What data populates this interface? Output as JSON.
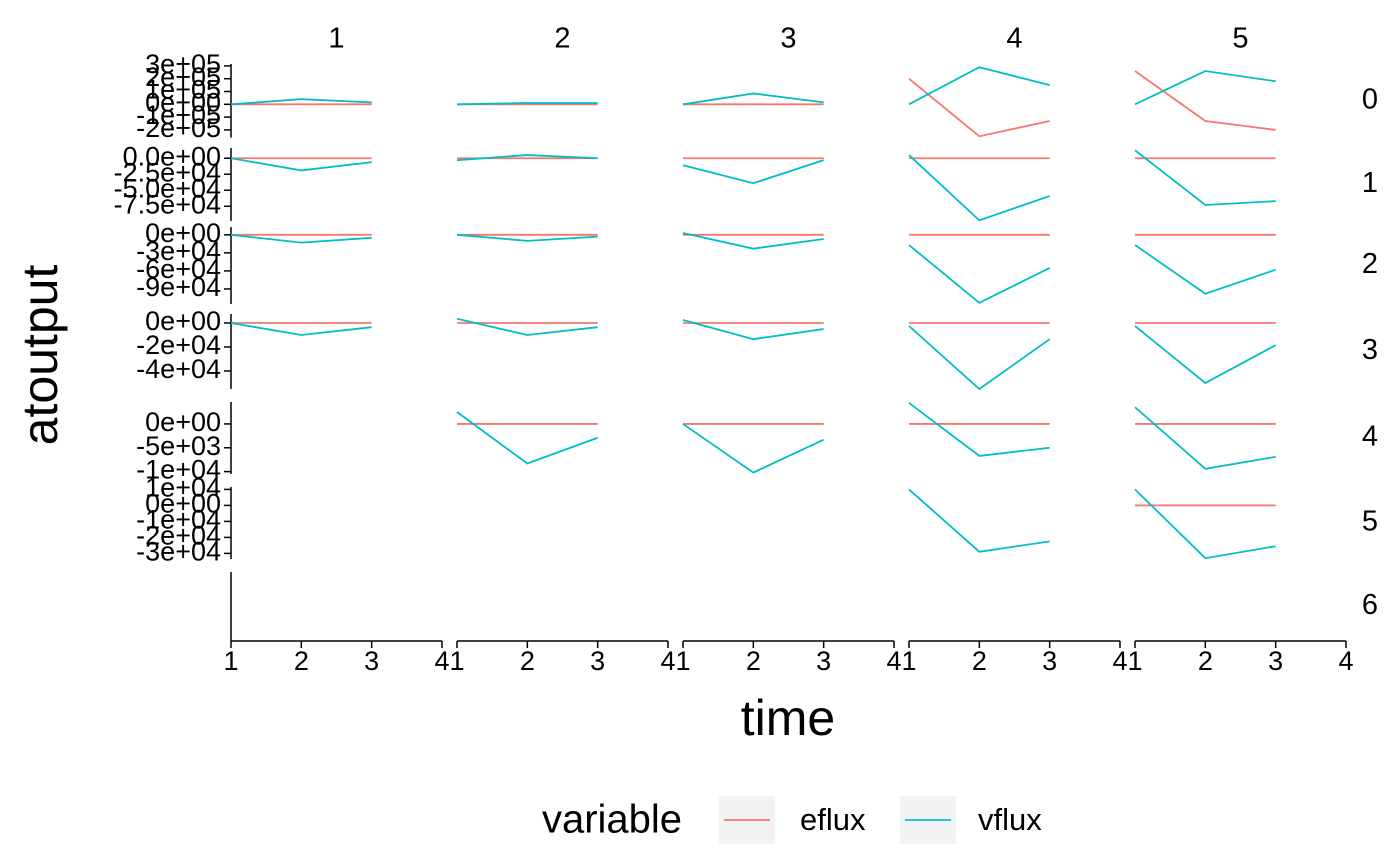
{
  "chart_data": {
    "type": "line",
    "x_label": "time",
    "y_label": "atoutput",
    "legend_title": "variable",
    "series": [
      {
        "name": "eflux",
        "color": "#F8766D"
      },
      {
        "name": "vflux",
        "color": "#00BFC4"
      }
    ],
    "x": [
      1,
      2,
      3
    ],
    "xlim": [
      1,
      4
    ],
    "xticks": [
      1,
      2,
      3,
      4
    ],
    "columns": [
      "1",
      "2",
      "3",
      "4",
      "5"
    ],
    "rows": [
      {
        "label": "0",
        "ylim": [
          -260000,
          315000
        ],
        "yticks": [
          {
            "value": 300000,
            "label": "3e+05"
          },
          {
            "value": 200000,
            "label": "2e+05"
          },
          {
            "value": 100000,
            "label": "1e+05"
          },
          {
            "value": 0,
            "label": "0e+00"
          },
          {
            "value": -100000,
            "label": "-1e+05"
          },
          {
            "value": -200000,
            "label": "-2e+05"
          }
        ],
        "values": [
          [
            [
              0,
              0,
              0
            ],
            [
              0,
              0,
              0
            ],
            [
              0,
              0,
              0
            ],
            [
              200000,
              -250000,
              -130000
            ],
            [
              260000,
              -130000,
              -200000
            ]
          ],
          [
            [
              0,
              40000,
              15000
            ],
            [
              0,
              10000,
              10000
            ],
            [
              0,
              85000,
              15000
            ],
            [
              0,
              290000,
              150000
            ],
            [
              0,
              260000,
              180000
            ]
          ]
        ]
      },
      {
        "label": "1",
        "ylim": [
          -98000,
          16000
        ],
        "yticks": [
          {
            "value": 0,
            "label": "0.0e+00"
          },
          {
            "value": -25000,
            "label": "-2.5e+04"
          },
          {
            "value": -50000,
            "label": "-5.0e+04"
          },
          {
            "value": -75000,
            "label": "-7.5e+04"
          }
        ],
        "values": [
          [
            [
              0,
              0,
              0
            ],
            [
              0,
              0,
              0
            ],
            [
              0,
              0,
              0
            ],
            [
              0,
              0,
              0
            ],
            [
              0,
              0,
              0
            ]
          ],
          [
            [
              0,
              -19000,
              -6000
            ],
            [
              -3000,
              5000,
              0
            ],
            [
              -11000,
              -39000,
              -3000
            ],
            [
              5000,
              -97000,
              -59000
            ],
            [
              12500,
              -73000,
              -67000
            ]
          ]
        ]
      },
      {
        "label": "2",
        "ylim": [
          -115000,
          13000
        ],
        "yticks": [
          {
            "value": 0,
            "label": "0e+00"
          },
          {
            "value": -30000,
            "label": "-3e+04"
          },
          {
            "value": -60000,
            "label": "-6e+04"
          },
          {
            "value": -90000,
            "label": "-9e+04"
          }
        ],
        "values": [
          [
            [
              0,
              0,
              0
            ],
            [
              0,
              0,
              0
            ],
            [
              0,
              0,
              0
            ],
            [
              0,
              0,
              0
            ],
            [
              0,
              0,
              0
            ]
          ],
          [
            [
              0,
              -13000,
              -5000
            ],
            [
              0,
              -10000,
              -3000
            ],
            [
              3000,
              -23000,
              -7000
            ],
            [
              -17000,
              -113000,
              -55000
            ],
            [
              -17000,
              -98000,
              -58000
            ]
          ]
        ]
      },
      {
        "label": "3",
        "ylim": [
          -55000,
          7500
        ],
        "yticks": [
          {
            "value": 0,
            "label": "0e+00"
          },
          {
            "value": -20000,
            "label": "-2e+04"
          },
          {
            "value": -40000,
            "label": "-4e+04"
          }
        ],
        "values": [
          [
            [
              0,
              0,
              0
            ],
            [
              0,
              0,
              0
            ],
            [
              0,
              0,
              0
            ],
            [
              0,
              0,
              0
            ],
            [
              0,
              0,
              0
            ]
          ],
          [
            [
              0,
              -10000,
              -3500
            ],
            [
              3500,
              -10000,
              -3500
            ],
            [
              2500,
              -13500,
              -5000
            ],
            [
              -2500,
              -55000,
              -13500
            ],
            [
              -2500,
              -50000,
              -18500
            ]
          ]
        ]
      },
      {
        "label": "4",
        "ylim": [
          -10500,
          4600
        ],
        "yticks": [
          {
            "value": 0,
            "label": "0e+00"
          },
          {
            "value": -5000,
            "label": "-5e+03"
          },
          {
            "value": -10000,
            "label": "-1e+04"
          }
        ],
        "values": [
          [
            null,
            [
              0,
              0,
              0
            ],
            [
              0,
              0,
              0
            ],
            [
              0,
              0,
              0
            ],
            [
              0,
              0,
              0
            ]
          ],
          [
            null,
            [
              2500,
              -8300,
              -2900
            ],
            [
              0,
              -10200,
              -3300
            ],
            [
              4400,
              -6700,
              -5000
            ],
            [
              3500,
              -9400,
              -6900
            ]
          ]
        ]
      },
      {
        "label": "5",
        "ylim": [
          -33500,
          11500
        ],
        "yticks": [
          {
            "value": 10000,
            "label": "1e+04"
          },
          {
            "value": 0,
            "label": "0e+00"
          },
          {
            "value": -10000,
            "label": "-1e+04"
          },
          {
            "value": -20000,
            "label": "-2e+04"
          },
          {
            "value": -30000,
            "label": "-3e+04"
          }
        ],
        "values": [
          [
            null,
            null,
            null,
            null,
            [
              0,
              0,
              0
            ]
          ],
          [
            null,
            null,
            null,
            [
              10000,
              -29000,
              -22500
            ],
            [
              10000,
              -33000,
              -25500
            ]
          ]
        ]
      },
      {
        "label": "6"
      }
    ]
  }
}
